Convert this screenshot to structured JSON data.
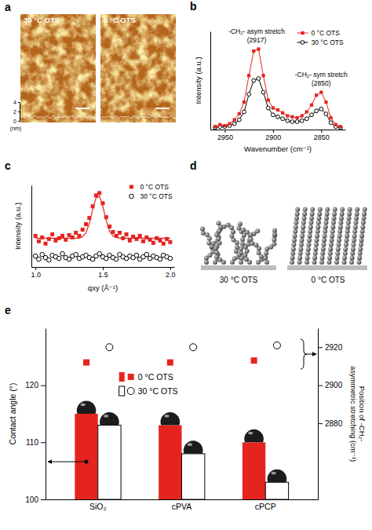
{
  "chart_data": [
    {
      "panel": "a",
      "type": "image",
      "images": [
        {
          "label": "30 °C OTS"
        },
        {
          "label": "0 °C OTS"
        }
      ],
      "ylim": [
        0,
        4
      ],
      "yticks": [
        0,
        2,
        4
      ],
      "y_label": "(nm)"
    },
    {
      "panel": "b",
      "type": "line",
      "x_label": "Wavenumber (cm⁻¹)",
      "y_label": "Intensity (a.u.)",
      "x": [
        2960,
        2955,
        2950,
        2945,
        2940,
        2935,
        2930,
        2925,
        2920,
        2915,
        2910,
        2905,
        2900,
        2895,
        2890,
        2885,
        2880,
        2875,
        2870,
        2865,
        2860,
        2855,
        2850,
        2845,
        2840,
        2835,
        2830
      ],
      "series": [
        {
          "name": "0 °C OTS",
          "color": "#e52420",
          "marker": "square",
          "values": [
            0.03,
            0.05,
            0.04,
            0.06,
            0.1,
            0.16,
            0.28,
            0.55,
            0.8,
            0.82,
            0.55,
            0.3,
            0.22,
            0.2,
            0.17,
            0.14,
            0.13,
            0.12,
            0.14,
            0.18,
            0.25,
            0.35,
            0.38,
            0.28,
            0.12,
            0.05,
            0.03
          ]
        },
        {
          "name": "30 °C OTS",
          "color": "#000000",
          "marker": "circle",
          "values": [
            0.02,
            0.03,
            0.03,
            0.04,
            0.06,
            0.1,
            0.18,
            0.36,
            0.5,
            0.52,
            0.38,
            0.22,
            0.15,
            0.13,
            0.11,
            0.09,
            0.08,
            0.08,
            0.09,
            0.11,
            0.15,
            0.19,
            0.21,
            0.16,
            0.07,
            0.03,
            0.02
          ]
        }
      ],
      "xlim": [
        2965,
        2825
      ],
      "xticks": [
        2950,
        2900,
        2850
      ],
      "ylim": [
        0,
        1
      ],
      "tick_labels": "x",
      "legend": "top-right",
      "annotations": [
        {
          "text": "-CH₂- asym stretch",
          "label": "(2917)",
          "x": 2917,
          "y": 0.82
        },
        {
          "text": "-CH₂- sym stretch",
          "label": "(2850)",
          "x": 2850,
          "y": 0.38
        }
      ]
    },
    {
      "panel": "c",
      "type": "scatter",
      "x_label": "qxy (Å⁻¹)",
      "y_label": "Intensity (a.u.)",
      "x": [
        1,
        1.025,
        1.05,
        1.075,
        1.1,
        1.125,
        1.15,
        1.175,
        1.2,
        1.225,
        1.25,
        1.275,
        1.3,
        1.325,
        1.35,
        1.375,
        1.4,
        1.425,
        1.45,
        1.475,
        1.5,
        1.525,
        1.55,
        1.575,
        1.6,
        1.625,
        1.65,
        1.675,
        1.7,
        1.725,
        1.75,
        1.775,
        1.8,
        1.825,
        1.85,
        1.875,
        1.9,
        1.925,
        1.95,
        1.975,
        2
      ],
      "series": [
        {
          "name": "0 °C OTS",
          "color": "#e52420",
          "marker": "square",
          "values": [
            0.4,
            0.33,
            0.38,
            0.3,
            0.36,
            0.42,
            0.34,
            0.37,
            0.4,
            0.35,
            0.41,
            0.38,
            0.44,
            0.4,
            0.48,
            0.55,
            0.63,
            0.78,
            0.92,
            0.95,
            0.82,
            0.64,
            0.52,
            0.45,
            0.4,
            0.44,
            0.37,
            0.42,
            0.34,
            0.39,
            0.36,
            0.4,
            0.33,
            0.38,
            0.35,
            0.31,
            0.37,
            0.34,
            0.3,
            0.36,
            0.32
          ],
          "fit": [
            0.37,
            0.37,
            0.37,
            0.37,
            0.37,
            0.37,
            0.37,
            0.37,
            0.37,
            0.37,
            0.37,
            0.37,
            0.37,
            0.37,
            0.39,
            0.44,
            0.56,
            0.74,
            0.89,
            0.91,
            0.78,
            0.6,
            0.46,
            0.4,
            0.38,
            0.37,
            0.37,
            0.37,
            0.37,
            0.37,
            0.37,
            0.37,
            0.37,
            0.37,
            0.37,
            0.37,
            0.37,
            0.37,
            0.37,
            0.37,
            0.37
          ]
        },
        {
          "name": "30 °C OTS",
          "color": "#000000",
          "marker": "circle",
          "values": [
            0.14,
            0.1,
            0.16,
            0.12,
            0.09,
            0.15,
            0.13,
            0.11,
            0.17,
            0.12,
            0.1,
            0.14,
            0.16,
            0.11,
            0.13,
            0.15,
            0.12,
            0.1,
            0.14,
            0.17,
            0.13,
            0.11,
            0.15,
            0.12,
            0.1,
            0.16,
            0.13,
            0.11,
            0.14,
            0.12,
            0.15,
            0.1,
            0.13,
            0.16,
            0.11,
            0.14,
            0.12,
            0.1,
            0.15,
            0.13,
            0.11
          ]
        }
      ],
      "xlim": [
        0.97,
        2.03
      ],
      "xticks": [
        {
          "value": 1,
          "label": "1.0"
        },
        1.5,
        {
          "value": 2,
          "label": "2.0"
        }
      ],
      "ylim": [
        0,
        1.05
      ],
      "tick_labels": "x",
      "legend": "top-right"
    },
    {
      "panel": "d",
      "type": "diagram",
      "labels": [
        "30 °C OTS",
        "0 °C OTS"
      ]
    },
    {
      "panel": "e",
      "type": "bar",
      "categories": [
        "SiO₂",
        "cPVA",
        "cPCP"
      ],
      "y_label": "Contact angle (°)",
      "y2_label": "Position of -CH₂- asymmetric stretching (cm⁻¹)",
      "series": [
        {
          "name": "0 °C OTS",
          "type": "bar",
          "color": "#e52420",
          "values": [
            115,
            113,
            110
          ]
        },
        {
          "name": "30 °C OTS",
          "type": "bar",
          "color": "#ffffff",
          "values": [
            113,
            108,
            103
          ]
        },
        {
          "type": "scatter",
          "axis": "y2",
          "color": "#e52420",
          "marker": "square",
          "values": [
            2912,
            2912,
            2913
          ]
        },
        {
          "type": "scatter",
          "axis": "y2",
          "color": "#000000",
          "marker": "circle",
          "values": [
            2920,
            2920,
            2921
          ]
        }
      ],
      "ylim": [
        100,
        130
      ],
      "yticks": [
        100,
        110,
        120
      ],
      "y2lim": [
        2840,
        2930
      ],
      "y2ticks": [
        2880,
        2900,
        2920
      ],
      "legend": "top"
    }
  ]
}
